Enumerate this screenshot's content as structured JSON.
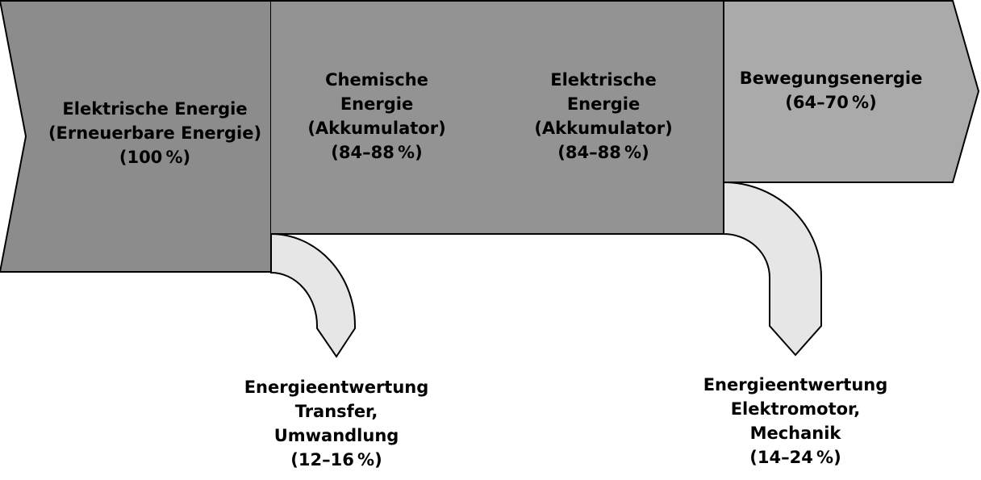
{
  "stages": [
    {
      "lines": [
        "Elektrische Energie",
        "(Erneuerbare Energie)",
        "(100 %)"
      ]
    },
    {
      "lines": [
        "Chemische",
        "Energie",
        "(Akkumulator)",
        "(84–88 %)"
      ]
    },
    {
      "lines": [
        "Elektrische",
        "Energie",
        "(Akkumulator)",
        "(84–88 %)"
      ]
    },
    {
      "lines": [
        "Bewegungsenergie",
        "(64–70 %)"
      ]
    }
  ],
  "losses": [
    {
      "lines": [
        "Energieentwertung",
        "Transfer,",
        "Umwandlung",
        "(12–16 %)"
      ]
    },
    {
      "lines": [
        "Energieentwertung",
        "Elektromotor,",
        "Mechanik",
        "(14–24 %)"
      ]
    }
  ],
  "colors": {
    "stage1": "#8c8c8c",
    "stage2": "#939393",
    "stage3": "#939393",
    "stage4": "#aaaaaa",
    "loss": "#e6e6e6",
    "stroke": "#000000"
  }
}
